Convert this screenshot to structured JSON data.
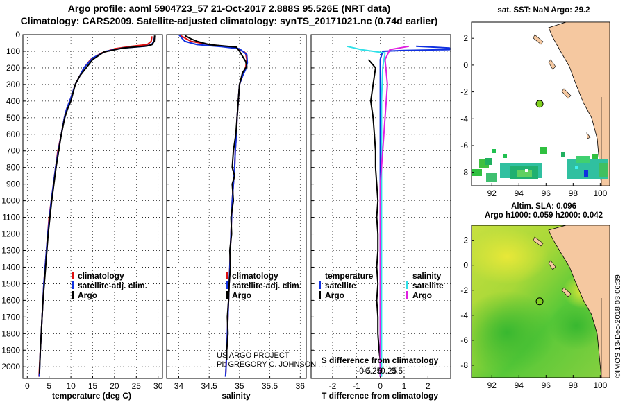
{
  "header": {
    "title_line1": "Argo profile: aoml 5904723_57 21-Oct-2017 2.888S 95.526E (NRT data)",
    "title_line2": "Climatology: CARS2009. Satellite-adjusted climatology: synTS_20171021.nc (0.74d earlier)"
  },
  "map_top": {
    "title": "sat. SST: NaN Argo: 29.2"
  },
  "map_bottom": {
    "title_line1": "Altim. SLA: 0.096",
    "title_line2": "Argo h1000: 0.059 h2000: 0.042"
  },
  "credit": {
    "line1": "US ARGO PROJECT",
    "line2": "PI: GREGORY C. JOHNSON"
  },
  "watermark": "©IMOS 13-Dec-2018 03:06:39",
  "legend": {
    "climatology": "climatology",
    "satellite_adj": "satellite-adj. clim.",
    "argo": "Argo",
    "temperature": "temperature",
    "salinity": "salinity",
    "satellite": "satellite"
  },
  "colors": {
    "climatology": "#e01010",
    "satellite": "#1030e0",
    "argo": "#000000",
    "temp_diff_sat": "#30e0e8",
    "sal_diff_sat": "#e020e0",
    "land": "#f5c8a0",
    "marker": "#80d020"
  },
  "chart_data": [
    {
      "type": "line",
      "name": "temperature",
      "xlabel": "temperature (deg C)",
      "ylabel": "",
      "xlim": [
        -1,
        31
      ],
      "ylim": [
        2070,
        0
      ],
      "xticks": [
        0,
        5,
        10,
        15,
        20,
        25,
        30
      ],
      "yticks": [
        0,
        100,
        200,
        300,
        400,
        500,
        600,
        700,
        800,
        900,
        1000,
        1100,
        1200,
        1300,
        1400,
        1500,
        1600,
        1700,
        1800,
        1900,
        2000
      ],
      "series": [
        {
          "name": "climatology",
          "points": [
            [
              28.6,
              10
            ],
            [
              28.4,
              40
            ],
            [
              27.5,
              60
            ],
            [
              24,
              70
            ],
            [
              20,
              85
            ],
            [
              17,
              110
            ],
            [
              14.5,
              150
            ],
            [
              13,
              200
            ],
            [
              12,
              250
            ],
            [
              11,
              300
            ],
            [
              10,
              380
            ],
            [
              9,
              450
            ],
            [
              8.5,
              500
            ],
            [
              7.8,
              600
            ],
            [
              7,
              700
            ],
            [
              6.5,
              800
            ],
            [
              6,
              900
            ],
            [
              5.5,
              1000
            ],
            [
              5,
              1100
            ],
            [
              4.7,
              1200
            ],
            [
              4.4,
              1300
            ],
            [
              4.1,
              1400
            ],
            [
              3.8,
              1500
            ],
            [
              3.6,
              1600
            ],
            [
              3.4,
              1700
            ],
            [
              3.2,
              1800
            ],
            [
              3,
              1900
            ],
            [
              2.8,
              2000
            ],
            [
              2.7,
              2060
            ]
          ]
        },
        {
          "name": "satellite-adj. clim.",
          "points": [
            [
              29.2,
              10
            ],
            [
              29,
              40
            ],
            [
              28.5,
              60
            ],
            [
              27,
              70
            ],
            [
              22,
              80
            ],
            [
              18,
              100
            ],
            [
              15,
              140
            ],
            [
              13,
              200
            ],
            [
              12,
              250
            ],
            [
              11,
              300
            ],
            [
              10,
              380
            ],
            [
              9,
              450
            ],
            [
              8.5,
              500
            ],
            [
              7.8,
              600
            ],
            [
              7.1,
              700
            ],
            [
              6.5,
              800
            ],
            [
              6,
              900
            ],
            [
              5.5,
              1000
            ],
            [
              5.1,
              1100
            ],
            [
              4.7,
              1200
            ],
            [
              4.4,
              1300
            ],
            [
              4.1,
              1400
            ],
            [
              3.8,
              1500
            ],
            [
              3.6,
              1600
            ],
            [
              3.4,
              1700
            ],
            [
              3.2,
              1800
            ],
            [
              3,
              1900
            ],
            [
              2.85,
              2000
            ],
            [
              2.75,
              2060
            ]
          ]
        },
        {
          "name": "Argo",
          "points": [
            [
              29.2,
              5
            ],
            [
              29.1,
              40
            ],
            [
              28.6,
              60
            ],
            [
              27.5,
              68
            ],
            [
              22,
              80
            ],
            [
              17.5,
              105
            ],
            [
              15,
              150
            ],
            [
              13.5,
              200
            ],
            [
              12,
              250
            ],
            [
              11,
              300
            ],
            [
              10,
              400
            ],
            [
              9.2,
              450
            ],
            [
              8.6,
              500
            ],
            [
              7.8,
              600
            ],
            [
              7.2,
              700
            ],
            [
              6.6,
              800
            ],
            [
              6.1,
              900
            ],
            [
              5.6,
              1000
            ],
            [
              5.2,
              1100
            ],
            [
              4.8,
              1200
            ],
            [
              4.5,
              1300
            ],
            [
              4.2,
              1400
            ],
            [
              3.9,
              1500
            ],
            [
              3.6,
              1600
            ],
            [
              3.4,
              1700
            ],
            [
              3.2,
              1800
            ],
            [
              3,
              1900
            ],
            [
              2.85,
              2000
            ],
            [
              2.8,
              2040
            ]
          ]
        }
      ]
    },
    {
      "type": "line",
      "name": "salinity",
      "xlabel": "salinity",
      "xlim": [
        33.8,
        36.1
      ],
      "ylim": [
        2070,
        0
      ],
      "xticks": [
        34,
        34.5,
        35,
        35.5,
        36
      ],
      "series": [
        {
          "name": "climatology",
          "points": [
            [
              34.0,
              0
            ],
            [
              34.1,
              20
            ],
            [
              34.2,
              40
            ],
            [
              34.5,
              60
            ],
            [
              34.75,
              70
            ],
            [
              34.95,
              80
            ],
            [
              35.1,
              110
            ],
            [
              35.12,
              150
            ],
            [
              35.1,
              200
            ],
            [
              35.05,
              250
            ],
            [
              35.0,
              300
            ],
            [
              34.98,
              400
            ],
            [
              34.96,
              500
            ],
            [
              34.95,
              600
            ],
            [
              34.93,
              700
            ],
            [
              34.92,
              800
            ],
            [
              34.9,
              900
            ],
            [
              34.88,
              1000
            ],
            [
              34.86,
              1200
            ],
            [
              34.84,
              1400
            ],
            [
              34.82,
              1600
            ],
            [
              34.8,
              1800
            ],
            [
              34.78,
              2000
            ],
            [
              34.77,
              2060
            ]
          ]
        },
        {
          "name": "satellite-adj. clim.",
          "points": [
            [
              34.0,
              0
            ],
            [
              34.05,
              20
            ],
            [
              34.1,
              40
            ],
            [
              34.3,
              60
            ],
            [
              34.7,
              72
            ],
            [
              35.0,
              85
            ],
            [
              35.12,
              120
            ],
            [
              35.13,
              170
            ],
            [
              35.1,
              210
            ],
            [
              35.05,
              250
            ],
            [
              35.0,
              300
            ],
            [
              34.98,
              400
            ],
            [
              34.96,
              500
            ],
            [
              34.95,
              600
            ],
            [
              34.93,
              700
            ],
            [
              34.92,
              800
            ],
            [
              34.9,
              900
            ],
            [
              34.88,
              1000
            ],
            [
              34.86,
              1200
            ],
            [
              34.84,
              1400
            ],
            [
              34.82,
              1600
            ],
            [
              34.8,
              1800
            ],
            [
              34.78,
              2000
            ],
            [
              34.77,
              2060
            ]
          ]
        },
        {
          "name": "Argo",
          "points": [
            [
              34.1,
              5
            ],
            [
              34.2,
              25
            ],
            [
              34.3,
              40
            ],
            [
              34.5,
              60
            ],
            [
              34.95,
              75
            ],
            [
              35.0,
              100
            ],
            [
              35.1,
              160
            ],
            [
              35.12,
              190
            ],
            [
              35.05,
              230
            ],
            [
              35.0,
              300
            ],
            [
              34.98,
              400
            ],
            [
              34.96,
              500
            ],
            [
              34.94,
              600
            ],
            [
              34.9,
              700
            ],
            [
              34.88,
              800
            ],
            [
              34.92,
              850
            ],
            [
              34.88,
              900
            ],
            [
              34.9,
              1000
            ],
            [
              34.86,
              1100
            ],
            [
              34.87,
              1200
            ],
            [
              34.84,
              1300
            ],
            [
              34.85,
              1400
            ],
            [
              34.83,
              1500
            ],
            [
              34.82,
              1600
            ],
            [
              34.8,
              1700
            ],
            [
              34.81,
              1800
            ],
            [
              34.79,
              1900
            ],
            [
              34.79,
              1960
            ]
          ]
        }
      ]
    },
    {
      "type": "line",
      "name": "difference from climatology",
      "xlabel": "T difference from climatology",
      "top_axis_label": "S difference from climatology",
      "xlim": [
        -2.9,
        2.95
      ],
      "ylim": [
        2070,
        0
      ],
      "xticks": [
        -2,
        -1,
        0,
        1,
        2
      ],
      "top_ticks": [
        -0.5,
        -0.25,
        0,
        0.25,
        0.5
      ],
      "series": [
        {
          "name": "temperature satellite",
          "points": [
            [
              1.5,
              70
            ],
            [
              2.9,
              80
            ],
            [
              2.9,
              90
            ],
            [
              1.0,
              95
            ],
            [
              0.1,
              100
            ],
            [
              0.0,
              150
            ],
            [
              0.0,
              300
            ],
            [
              0.0,
              500
            ],
            [
              0.0,
              700
            ],
            [
              0.0,
              1000
            ],
            [
              0.0,
              1300
            ],
            [
              0.0,
              1600
            ],
            [
              0.0,
              2000
            ],
            [
              0.0,
              2060
            ]
          ]
        },
        {
          "name": "temperature Argo",
          "points": [
            [
              -0.5,
              150
            ],
            [
              -0.2,
              200
            ],
            [
              -0.3,
              300
            ],
            [
              -0.4,
              400
            ],
            [
              -0.3,
              500
            ],
            [
              -0.25,
              600
            ],
            [
              -0.2,
              700
            ],
            [
              -0.2,
              800
            ],
            [
              -0.15,
              900
            ],
            [
              -0.1,
              1000
            ],
            [
              -0.15,
              1100
            ],
            [
              -0.1,
              1200
            ],
            [
              -0.1,
              1300
            ],
            [
              -0.15,
              1400
            ],
            [
              -0.1,
              1500
            ],
            [
              -0.15,
              1600
            ],
            [
              -0.1,
              1700
            ],
            [
              -0.1,
              1800
            ],
            [
              -0.05,
              1900
            ],
            [
              0,
              1960
            ]
          ]
        },
        {
          "name": "salinity satellite",
          "points": [
            [
              -1.4,
              70
            ],
            [
              -0.8,
              90
            ],
            [
              0.2,
              110
            ],
            [
              0.1,
              200
            ],
            [
              0.05,
              400
            ],
            [
              0.05,
              700
            ],
            [
              0.05,
              1000
            ],
            [
              0.05,
              1500
            ],
            [
              0.05,
              2060
            ]
          ]
        },
        {
          "name": "salinity Argo",
          "points": [
            [
              1.2,
              70
            ],
            [
              0.4,
              90
            ],
            [
              0.2,
              150
            ],
            [
              0.3,
              300
            ],
            [
              0.1,
              700
            ],
            [
              0.0,
              900
            ],
            [
              0.0,
              1500
            ],
            [
              0.0,
              2060
            ]
          ]
        }
      ]
    },
    {
      "type": "map",
      "name": "sat. SST map",
      "x_ticks": [
        92,
        94,
        96,
        98,
        100
      ],
      "y_ticks": [
        2,
        0,
        -2,
        -4,
        -6,
        -8
      ],
      "xlim": [
        90.5,
        100.7
      ],
      "ylim": [
        -9,
        3.2
      ],
      "argo_position": [
        95.526,
        -2.888
      ]
    },
    {
      "type": "map",
      "name": "altimetry SLA map",
      "x_ticks": [
        92,
        94,
        96,
        98,
        100
      ],
      "y_ticks": [
        2,
        0,
        -2,
        -4,
        -6,
        -8
      ],
      "xlim": [
        90.5,
        100.7
      ],
      "ylim": [
        -9,
        3.2
      ],
      "argo_position": [
        95.526,
        -2.888
      ]
    }
  ]
}
